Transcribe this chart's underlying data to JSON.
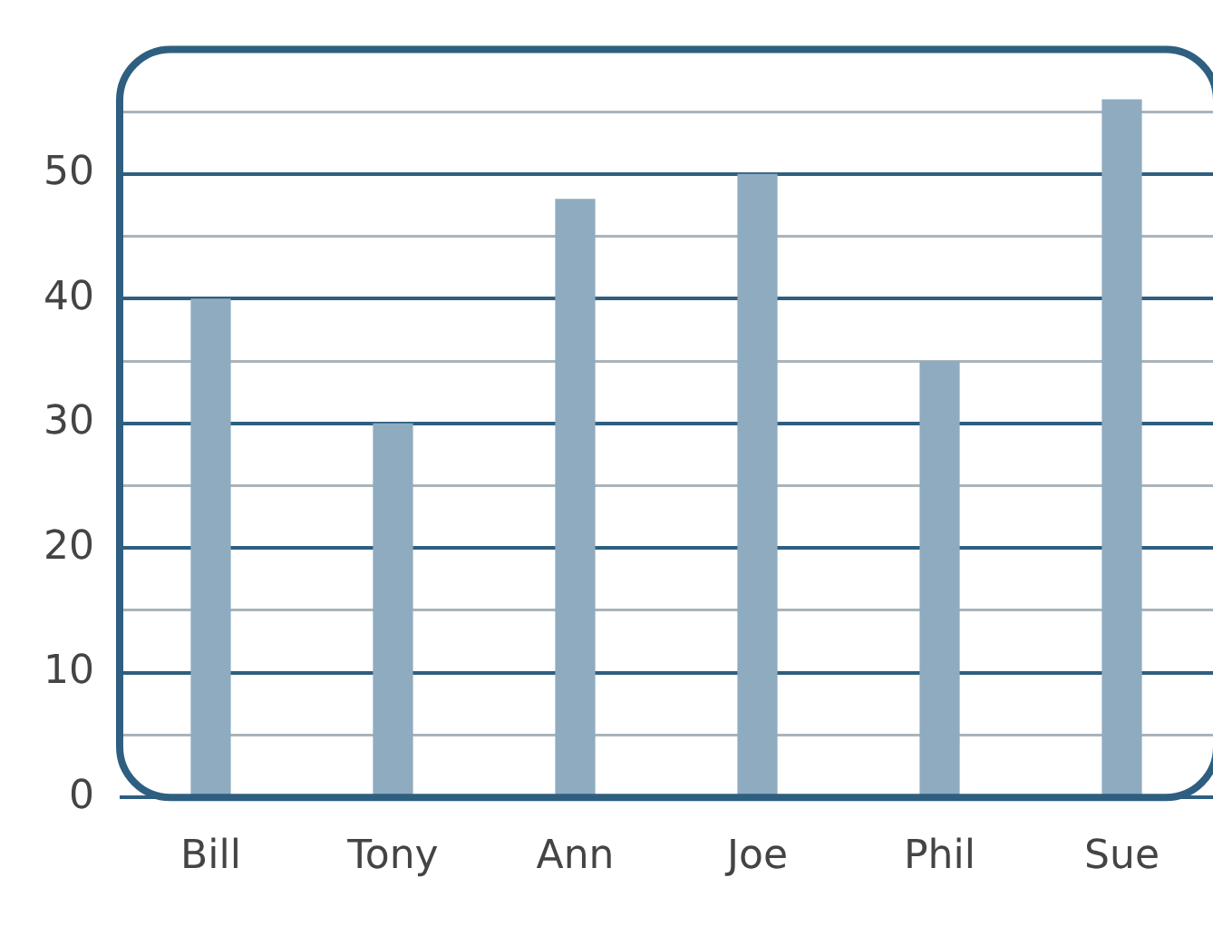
{
  "chart_data": {
    "type": "bar",
    "categories": [
      "Bill",
      "Tony",
      "Ann",
      "Joe",
      "Phil",
      "Sue"
    ],
    "values": [
      40,
      30,
      48,
      50,
      35,
      56
    ],
    "color": "#8fabc0",
    "ylim": [
      0,
      60
    ],
    "yticks": [
      0,
      {
        "value": 5,
        "label": null
      },
      10,
      {
        "value": 15,
        "label": null
      },
      20,
      {
        "value": 25,
        "label": null
      },
      30,
      {
        "value": 35,
        "label": null
      },
      40,
      {
        "value": 45,
        "label": null
      },
      50,
      {
        "value": 55,
        "label": null
      }
    ],
    "grid": "y"
  }
}
